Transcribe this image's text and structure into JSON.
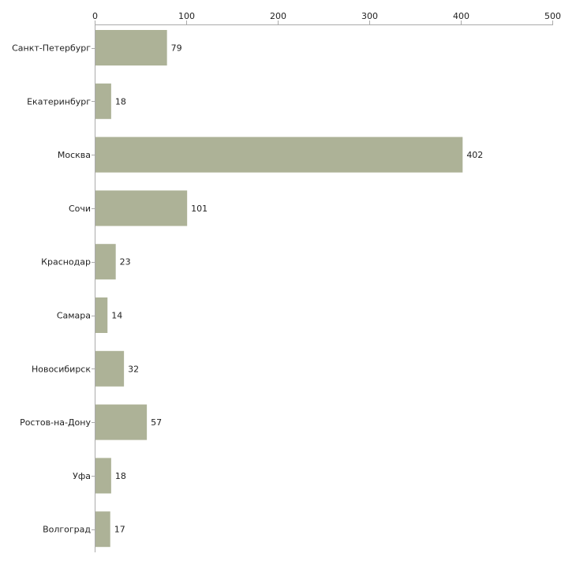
{
  "chart_data": {
    "type": "bar",
    "orientation": "horizontal",
    "title": "",
    "xlabel": "",
    "ylabel": "",
    "xlim": [
      0,
      500
    ],
    "x_ticks": [
      0,
      100,
      200,
      300,
      400,
      500
    ],
    "x_axis_position": "top",
    "grid": false,
    "bar_color": "#adb297",
    "categories": [
      "Санкт-Петербург",
      "Екатеринбург",
      "Москва",
      "Сочи",
      "Краснодар",
      "Самара",
      "Новосибирск",
      "Ростов-на-Дону",
      "Уфа",
      "Волгоград"
    ],
    "values": [
      79,
      18,
      402,
      101,
      23,
      14,
      32,
      57,
      18,
      17
    ]
  }
}
